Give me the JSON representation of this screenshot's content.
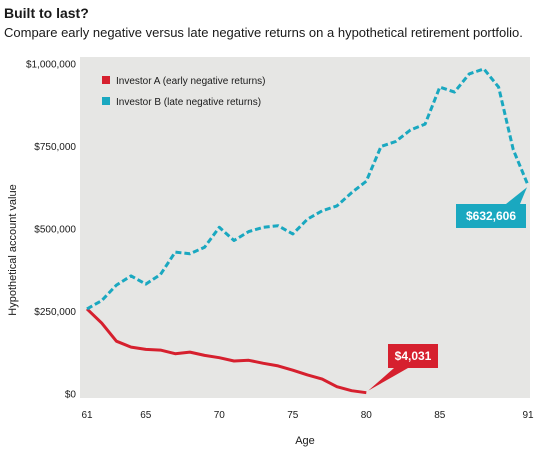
{
  "header": {
    "title": "Built to last?",
    "subtitle": "Compare early negative versus late negative returns on a hypothetical retirement portfolio."
  },
  "chart_data": {
    "type": "line",
    "xlabel": "Age",
    "ylabel": "Hypothetical account value",
    "xlim": [
      61,
      91
    ],
    "ylim": [
      0,
      1000000
    ],
    "x_ticks": [
      61,
      65,
      70,
      75,
      80,
      85,
      91
    ],
    "x_tick_labels": [
      "61",
      "65",
      "70",
      "75",
      "80",
      "85",
      "91"
    ],
    "y_ticks": [
      0,
      250000,
      500000,
      750000,
      1000000
    ],
    "y_tick_labels": [
      "$0",
      "$250,000",
      "$500,000",
      "$750,000",
      "$1,000,000"
    ],
    "grid": false,
    "legend_position": "top-left",
    "background_color": "#e6e6e4",
    "series": [
      {
        "name": "Investor A (early negative returns)",
        "color": "#d6202e",
        "style": "solid",
        "x": [
          61,
          62,
          63,
          64,
          65,
          66,
          67,
          68,
          69,
          70,
          71,
          72,
          73,
          74,
          75,
          76,
          77,
          78,
          79,
          80
        ],
        "values": [
          258000,
          215000,
          160000,
          142000,
          135000,
          133000,
          122000,
          127000,
          117000,
          110000,
          100000,
          102000,
          93000,
          85000,
          72000,
          58000,
          45000,
          22000,
          10000,
          4031
        ]
      },
      {
        "name": "Investor B (late negative returns)",
        "color": "#1aa8c0",
        "style": "dashed",
        "x": [
          61,
          62,
          63,
          64,
          65,
          66,
          67,
          68,
          69,
          70,
          71,
          72,
          73,
          74,
          75,
          76,
          77,
          78,
          79,
          80,
          81,
          82,
          83,
          84,
          85,
          86,
          87,
          88,
          89,
          90,
          91
        ],
        "values": [
          258000,
          283000,
          330000,
          358000,
          333000,
          362000,
          430000,
          425000,
          445000,
          505000,
          465000,
          492000,
          505000,
          510000,
          485000,
          530000,
          555000,
          570000,
          610000,
          645000,
          750000,
          765000,
          800000,
          818000,
          930000,
          915000,
          970000,
          985000,
          930000,
          740000,
          632606
        ]
      }
    ],
    "annotations": [
      {
        "series": "Investor A (early negative returns)",
        "label": "$4,031",
        "x": 80,
        "y": 4031
      },
      {
        "series": "Investor B (late negative returns)",
        "label": "$632,606",
        "x": 91,
        "y": 632606
      }
    ]
  }
}
